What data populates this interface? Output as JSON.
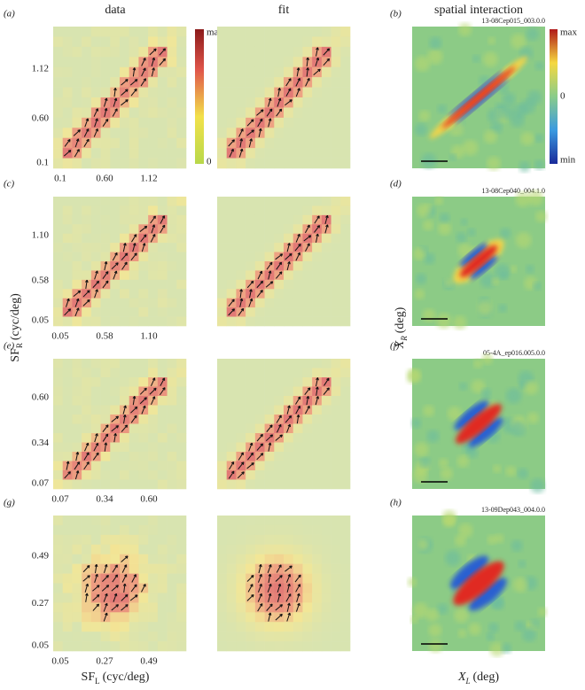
{
  "columns": [
    "data",
    "fit",
    "spatial interaction"
  ],
  "panels": [
    {
      "left": "(a)",
      "right": "(b)",
      "id": "13-08Cep015_003.0.0",
      "yticks": [
        "1.12",
        "0.60",
        "0.1"
      ],
      "xticks": [
        "0.1",
        "0.60",
        "1.12"
      ]
    },
    {
      "left": "(c)",
      "right": "(d)",
      "id": "13-08Cep040_004.1.0",
      "yticks": [
        "1.10",
        "0.58",
        "0.05"
      ],
      "xticks": [
        "0.05",
        "0.58",
        "1.10"
      ]
    },
    {
      "left": "(e)",
      "right": "(f)",
      "id": "05-4A_ep016.005.0.0",
      "yticks": [
        "0.60",
        "0.34",
        "0.07"
      ],
      "xticks": [
        "0.07",
        "0.34",
        "0.60"
      ]
    },
    {
      "left": "(g)",
      "right": "(h)",
      "id": "13-09Dep043_004.0.0",
      "yticks": [
        "0.49",
        "0.27",
        "0.05"
      ],
      "xticks": [
        "0.05",
        "0.27",
        "0.49"
      ]
    }
  ],
  "colorbar_left": [
    "max",
    "0"
  ],
  "colorbar_right": [
    "max",
    "0",
    "min"
  ],
  "ylabel": {
    "main": "SF",
    "sub": "R",
    "unit": "(cyc/deg)"
  },
  "xlabel": {
    "main": "SF",
    "sub": "L",
    "unit": "(cyc/deg)"
  },
  "ylabel_right": {
    "main": "X",
    "sub": "R",
    "unit": "(deg)"
  },
  "xlabel_right": {
    "main": "X",
    "sub": "L",
    "unit": "(deg)"
  }
}
